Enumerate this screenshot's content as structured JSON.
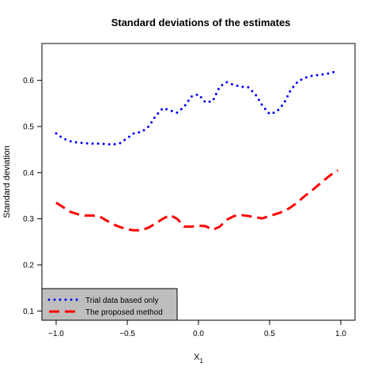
{
  "chart_data": {
    "type": "line",
    "title": "Standard deviations of the estimates",
    "xlabel": "X",
    "xlabel_subscript": "1",
    "ylabel": "Standard deviation",
    "xlim": [
      -1.1,
      1.1
    ],
    "ylim": [
      0.08,
      0.68
    ],
    "x_ticks": [
      -1.0,
      -0.5,
      0.0,
      0.5,
      1.0
    ],
    "x_tick_labels": [
      "−1.0",
      "−0.5",
      "0.0",
      "0.5",
      "1.0"
    ],
    "y_ticks": [
      0.1,
      0.2,
      0.3,
      0.4,
      0.5,
      0.6
    ],
    "y_tick_labels": [
      "0.1",
      "0.2",
      "0.3",
      "0.4",
      "0.5",
      "0.6"
    ],
    "grid": false,
    "legend_position": "bottom-left",
    "series": [
      {
        "name": "Trial data based only",
        "color": "#0000ff",
        "style": "dotted",
        "x": [
          -1.0,
          -0.95,
          -0.9,
          -0.85,
          -0.8,
          -0.75,
          -0.7,
          -0.65,
          -0.6,
          -0.55,
          -0.5,
          -0.45,
          -0.4,
          -0.35,
          -0.3,
          -0.25,
          -0.2,
          -0.15,
          -0.1,
          -0.05,
          0.0,
          0.05,
          0.1,
          0.15,
          0.2,
          0.25,
          0.3,
          0.35,
          0.4,
          0.45,
          0.5,
          0.55,
          0.6,
          0.65,
          0.7,
          0.75,
          0.8,
          0.85,
          0.9,
          0.95,
          0.98
        ],
        "y": [
          0.485,
          0.474,
          0.468,
          0.465,
          0.464,
          0.463,
          0.463,
          0.462,
          0.461,
          0.464,
          0.475,
          0.486,
          0.488,
          0.5,
          0.523,
          0.54,
          0.535,
          0.53,
          0.543,
          0.565,
          0.57,
          0.552,
          0.555,
          0.587,
          0.596,
          0.59,
          0.586,
          0.585,
          0.57,
          0.545,
          0.527,
          0.532,
          0.55,
          0.58,
          0.598,
          0.606,
          0.61,
          0.612,
          0.614,
          0.618,
          0.618
        ]
      },
      {
        "name": "The proposed method",
        "color": "#ff0000",
        "style": "dashed",
        "x": [
          -1.0,
          -0.95,
          -0.9,
          -0.85,
          -0.8,
          -0.75,
          -0.7,
          -0.65,
          -0.6,
          -0.55,
          -0.5,
          -0.45,
          -0.4,
          -0.35,
          -0.3,
          -0.25,
          -0.2,
          -0.15,
          -0.1,
          -0.05,
          0.0,
          0.05,
          0.1,
          0.15,
          0.2,
          0.25,
          0.3,
          0.35,
          0.4,
          0.45,
          0.5,
          0.55,
          0.6,
          0.65,
          0.7,
          0.75,
          0.8,
          0.85,
          0.9,
          0.95,
          0.98
        ],
        "y": [
          0.335,
          0.325,
          0.315,
          0.31,
          0.307,
          0.307,
          0.306,
          0.297,
          0.288,
          0.282,
          0.277,
          0.275,
          0.275,
          0.281,
          0.29,
          0.3,
          0.308,
          0.3,
          0.283,
          0.283,
          0.285,
          0.284,
          0.276,
          0.283,
          0.298,
          0.306,
          0.308,
          0.306,
          0.303,
          0.301,
          0.306,
          0.311,
          0.316,
          0.325,
          0.337,
          0.35,
          0.362,
          0.375,
          0.388,
          0.4,
          0.405
        ]
      }
    ]
  }
}
